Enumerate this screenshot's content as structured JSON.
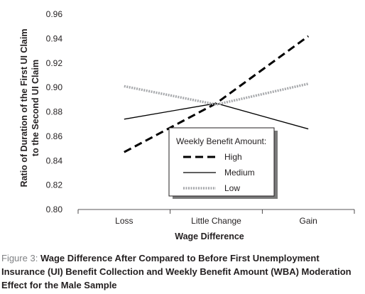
{
  "chart_data": {
    "type": "line",
    "categories": [
      "Loss",
      "Little Change",
      "Gain"
    ],
    "ylabel_lines": [
      "Ratio of Duration of the First UI Claim",
      "to the Second UI Claim"
    ],
    "xlabel": "Wage Difference",
    "ylim": [
      0.8,
      0.96
    ],
    "yticks": [
      0.8,
      0.82,
      0.84,
      0.86,
      0.88,
      0.9,
      0.92,
      0.94,
      0.96
    ],
    "ytick_labels": [
      "0.80",
      "0.82",
      "0.84",
      "0.86",
      "0.88",
      "0.90",
      "0.92",
      "0.94",
      "0.96"
    ],
    "legend": {
      "title": "Weekly Benefit Amount:",
      "placement": "center-right"
    },
    "series": [
      {
        "name": "High",
        "style": "dashed",
        "color": "#000000",
        "values": [
          0.847,
          0.887,
          0.942
        ]
      },
      {
        "name": "Medium",
        "style": "solid",
        "color": "#000000",
        "values": [
          0.874,
          0.887,
          0.866
        ]
      },
      {
        "name": "Low",
        "style": "dotted-thick",
        "color": "#a7a9ac",
        "values": [
          0.901,
          0.886,
          0.903
        ]
      }
    ],
    "grid": false
  },
  "caption": {
    "label": "Figure 3:",
    "text": "Wage Difference After Compared to Before First Unemployment Insurance (UI) Benefit Collection and Weekly Benefit Amount (WBA) Moderation Effect for the Male Sample"
  }
}
